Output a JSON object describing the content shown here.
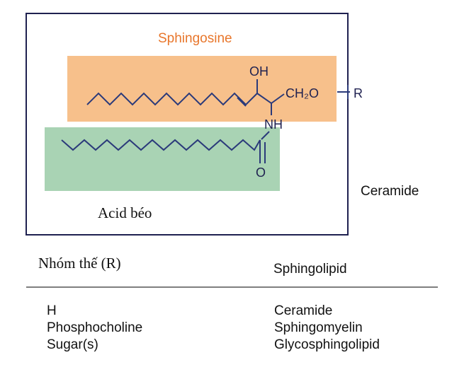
{
  "diagram": {
    "sphingosine_label": "Sphingosine",
    "fatty_acid_label": "Acid béo",
    "ceramide_label": "Ceramide",
    "atoms": {
      "oh": "OH",
      "ch2o": "CH₂O",
      "r": "R",
      "nh": "NH",
      "o": "O"
    },
    "colors": {
      "sphingosine_highlight": "#f7c08b",
      "sphingosine_text": "#e8762b",
      "fatty_acid_highlight": "#a9d3b4",
      "frame": "#1f2150",
      "bonds": "#2b3a7a"
    }
  },
  "table": {
    "header_left": "Nhóm thế (R)",
    "header_right": "Sphingolipid",
    "rows": [
      {
        "r": "H",
        "lipid": "Ceramide"
      },
      {
        "r": "Phosphocholine",
        "lipid": "Sphingomyelin"
      },
      {
        "r": "Sugar(s)",
        "lipid": "Glycosphingolipid"
      }
    ]
  }
}
